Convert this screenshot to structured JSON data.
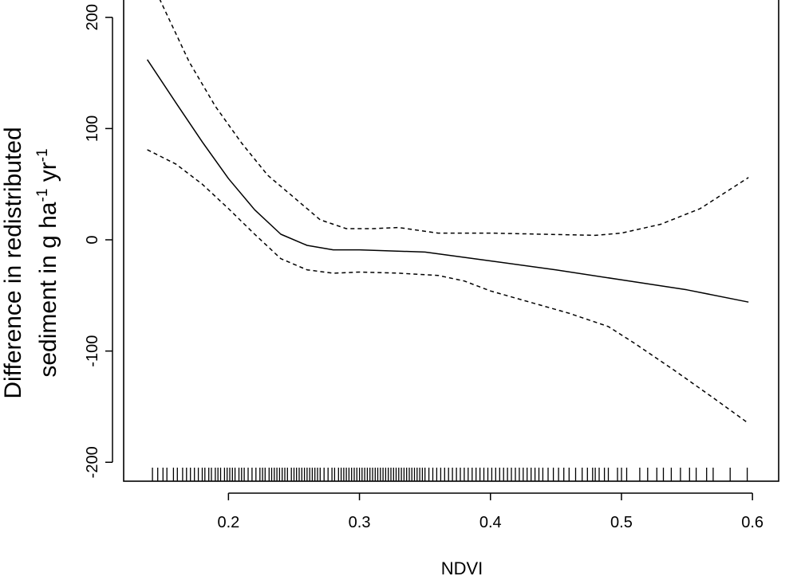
{
  "chart_data": {
    "type": "line",
    "title": "",
    "xlabel": "NDVI",
    "ylabel": {
      "line1": "Difference in redistributed",
      "line2_prefix": "sediment in g ha",
      "line2_sup1": "-1",
      "line2_mid": " yr",
      "line2_sup2": "-1"
    },
    "xlim": [
      0.12,
      0.62
    ],
    "ylim": [
      -217,
      217
    ],
    "grid": false,
    "legend": "none",
    "xticks": [
      0.2,
      0.3,
      0.4,
      0.5,
      0.6
    ],
    "xtick_labels": [
      "0.2",
      "0.3",
      "0.4",
      "0.5",
      "0.6"
    ],
    "yticks": [
      200,
      100,
      0,
      -100,
      -200
    ],
    "ytick_labels": [
      "200",
      "100",
      "0",
      "-100",
      "-200"
    ],
    "series": [
      {
        "style": "solid",
        "x": [
          0.138,
          0.16,
          0.18,
          0.2,
          0.22,
          0.24,
          0.26,
          0.28,
          0.3,
          0.35,
          0.4,
          0.45,
          0.5,
          0.55,
          0.597
        ],
        "y": [
          162,
          123,
          88,
          55,
          27,
          5,
          -5,
          -9,
          -9,
          -11,
          -19,
          -27,
          -36,
          -45,
          -56
        ]
      },
      {
        "style": "dashed",
        "x": [
          0.138,
          0.15,
          0.17,
          0.19,
          0.21,
          0.23,
          0.25,
          0.27,
          0.29,
          0.31,
          0.33,
          0.36,
          0.4,
          0.44,
          0.48,
          0.5,
          0.53,
          0.56,
          0.597
        ],
        "y": [
          240,
          210,
          160,
          120,
          87,
          58,
          38,
          18,
          10,
          10,
          11,
          6,
          6,
          5,
          4,
          6,
          14,
          28,
          56
        ]
      },
      {
        "style": "dashed",
        "x": [
          0.138,
          0.16,
          0.18,
          0.2,
          0.22,
          0.24,
          0.26,
          0.28,
          0.3,
          0.33,
          0.36,
          0.38,
          0.4,
          0.43,
          0.46,
          0.49,
          0.51,
          0.54,
          0.57,
          0.597
        ],
        "y": [
          81,
          68,
          50,
          28,
          5,
          -17,
          -27,
          -30,
          -29,
          -30,
          -32,
          -37,
          -46,
          -56,
          -66,
          -78,
          -93,
          -117,
          -142,
          -165
        ]
      }
    ],
    "rug": [
      0.142,
      0.146,
      0.15,
      0.153,
      0.158,
      0.161,
      0.165,
      0.168,
      0.171,
      0.174,
      0.177,
      0.18,
      0.182,
      0.185,
      0.187,
      0.19,
      0.192,
      0.194,
      0.197,
      0.199,
      0.201,
      0.203,
      0.205,
      0.208,
      0.21,
      0.212,
      0.215,
      0.218,
      0.221,
      0.224,
      0.226,
      0.228,
      0.231,
      0.233,
      0.235,
      0.237,
      0.239,
      0.241,
      0.243,
      0.245,
      0.248,
      0.25,
      0.252,
      0.254,
      0.256,
      0.258,
      0.26,
      0.262,
      0.264,
      0.266,
      0.268,
      0.27,
      0.273,
      0.276,
      0.279,
      0.281,
      0.284,
      0.286,
      0.288,
      0.29,
      0.292,
      0.294,
      0.296,
      0.298,
      0.3,
      0.302,
      0.304,
      0.306,
      0.308,
      0.31,
      0.312,
      0.314,
      0.316,
      0.318,
      0.32,
      0.322,
      0.324,
      0.326,
      0.328,
      0.33,
      0.332,
      0.334,
      0.336,
      0.338,
      0.34,
      0.342,
      0.344,
      0.346,
      0.348,
      0.35,
      0.353,
      0.356,
      0.359,
      0.362,
      0.365,
      0.368,
      0.371,
      0.374,
      0.377,
      0.38,
      0.383,
      0.386,
      0.389,
      0.392,
      0.395,
      0.398,
      0.401,
      0.404,
      0.407,
      0.41,
      0.413,
      0.416,
      0.419,
      0.422,
      0.425,
      0.428,
      0.431,
      0.434,
      0.437,
      0.44,
      0.444,
      0.448,
      0.452,
      0.456,
      0.46,
      0.465,
      0.47,
      0.474,
      0.478,
      0.48,
      0.483,
      0.487,
      0.49,
      0.497,
      0.5,
      0.504,
      0.514,
      0.52,
      0.527,
      0.532,
      0.538,
      0.545,
      0.552,
      0.557,
      0.565,
      0.57,
      0.583,
      0.596
    ]
  }
}
